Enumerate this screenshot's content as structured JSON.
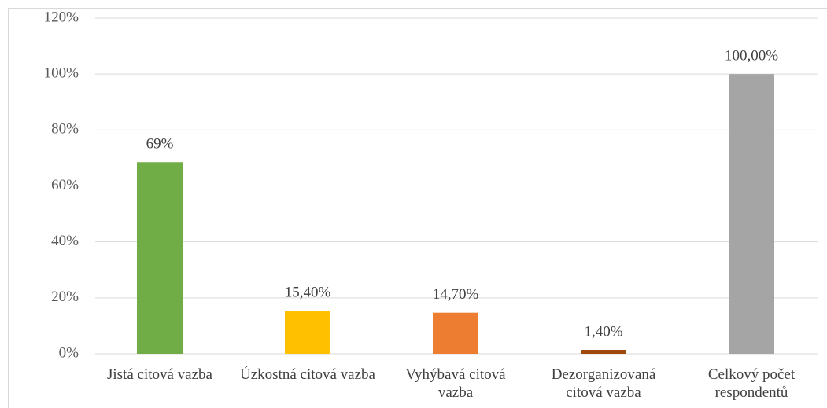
{
  "chart_data": {
    "type": "bar",
    "categories": [
      "Jistá citová vazba",
      "Úzkostná citová vazba",
      "Vyhýbavá citová vazba",
      "Dezorganizovaná citová vazba",
      "Celkový počet respondentů"
    ],
    "values": [
      68.5,
      15.4,
      14.7,
      1.4,
      100
    ],
    "value_labels": [
      "69%",
      "15,40%",
      "14,70%",
      "1,40%",
      "100,00%"
    ],
    "colors": [
      "#70ad47",
      "#ffc000",
      "#ed7d31",
      "#9e480e",
      "#a5a5a5"
    ],
    "ylim": [
      0,
      120
    ],
    "yticks": [
      {
        "value": 0,
        "label": "0%"
      },
      {
        "value": 20,
        "label": "20%"
      },
      {
        "value": 40,
        "label": "40%"
      },
      {
        "value": 60,
        "label": "60%"
      },
      {
        "value": 80,
        "label": "80%"
      },
      {
        "value": 100,
        "label": "100%"
      },
      {
        "value": 120,
        "label": "120%"
      }
    ],
    "grid": true
  }
}
